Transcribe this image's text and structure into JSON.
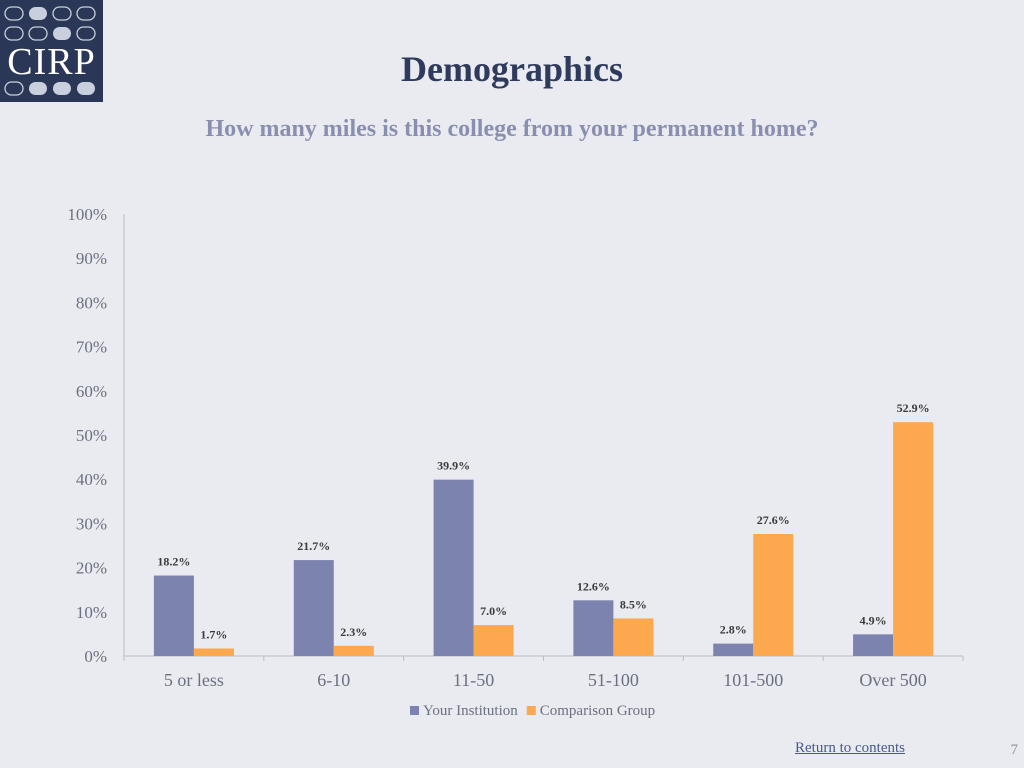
{
  "header": {
    "logo_text": "CIRP",
    "title": "Demographics",
    "subtitle": "How many miles is this college from your permanent home?"
  },
  "chart_data": {
    "type": "bar",
    "categories": [
      "5 or less",
      "6-10",
      "11-50",
      "51-100",
      "101-500",
      "Over 500"
    ],
    "series": [
      {
        "name": "Your Institution",
        "values": [
          18.2,
          21.7,
          39.9,
          12.6,
          2.8,
          4.9
        ],
        "color": "#7b83ae"
      },
      {
        "name": "Comparison Group",
        "values": [
          1.7,
          2.3,
          7.0,
          8.5,
          27.6,
          52.9
        ],
        "color": "#fba84f"
      }
    ],
    "data_labels": [
      [
        "18.2%",
        "21.7%",
        "39.9%",
        "12.6%",
        "2.8%",
        "4.9%"
      ],
      [
        "1.7%",
        "2.3%",
        "7.0%",
        "8.5%",
        "27.6%",
        "52.9%"
      ]
    ],
    "yticks": [
      "0%",
      "10%",
      "20%",
      "30%",
      "40%",
      "50%",
      "60%",
      "70%",
      "80%",
      "90%",
      "100%"
    ],
    "ylim": [
      0,
      100
    ],
    "grid": false,
    "legend": "bottom"
  },
  "footer": {
    "link_text": "Return to contents",
    "page_number": "7"
  }
}
